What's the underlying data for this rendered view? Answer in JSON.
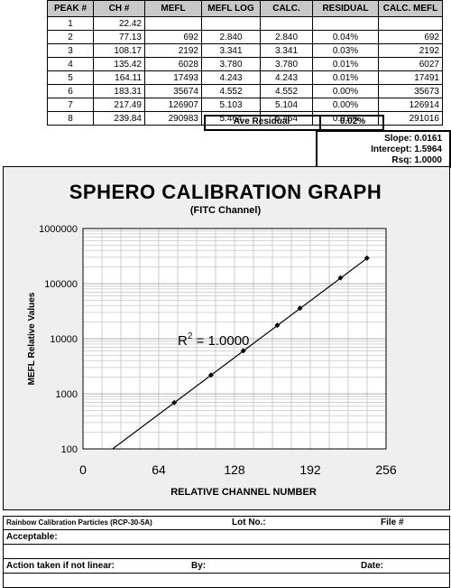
{
  "table": {
    "headers": [
      "PEAK #",
      "CH #",
      "MEFL",
      "MEFL LOG",
      "CALC.",
      "RESIDUAL",
      "CALC. MEFL"
    ],
    "rows": [
      [
        "1",
        "22.42",
        "",
        "",
        "",
        "",
        ""
      ],
      [
        "2",
        "77.13",
        "692",
        "2.840",
        "2.840",
        "0.04%",
        "692"
      ],
      [
        "3",
        "108.17",
        "2192",
        "3.341",
        "3.341",
        "0.03%",
        "2192"
      ],
      [
        "4",
        "135.42",
        "6028",
        "3.780",
        "3.780",
        "0.01%",
        "6027"
      ],
      [
        "5",
        "164.11",
        "17493",
        "4.243",
        "4.243",
        "0.01%",
        "17491"
      ],
      [
        "6",
        "183.31",
        "35674",
        "4.552",
        "4.552",
        "0.00%",
        "35673"
      ],
      [
        "7",
        "217.49",
        "126907",
        "5.103",
        "5.104",
        "0.00%",
        "126914"
      ],
      [
        "8",
        "239.84",
        "290983",
        "5.464",
        "5.464",
        "0.01%",
        "291016"
      ]
    ],
    "ave_residual_label": "Ave Residual",
    "ave_residual_value": "0.02%"
  },
  "stats": {
    "slope": "Slope: 0.0161",
    "intercept": "Intercept: 1.5964",
    "rsq": "Rsq: 1.0000"
  },
  "chart_data": {
    "type": "scatter",
    "title": "SPHERO CALIBRATION GRAPH",
    "subtitle": "(FITC Channel)",
    "xlabel": "RELATIVE CHANNEL NUMBER",
    "ylabel": "MEFL Relative Values",
    "xlim": [
      0,
      256
    ],
    "ylim": [
      100,
      1000000
    ],
    "yscale": "log",
    "x_ticks": [
      "0",
      "64",
      "128",
      "192",
      "256"
    ],
    "y_ticks": [
      "100",
      "1000",
      "10000",
      "100000",
      "1000000"
    ],
    "grid": true,
    "annotation": "R",
    "annotation_sup": "2",
    "annotation_rest": " = 1.0000",
    "points": {
      "x": [
        77.13,
        108.17,
        135.42,
        164.11,
        183.31,
        217.49,
        239.84
      ],
      "y": [
        692,
        2192,
        6028,
        17493,
        35674,
        126907,
        290983
      ]
    },
    "fit": {
      "slope": 0.0161,
      "intercept": 1.5964
    }
  },
  "form": {
    "particles": "Rainbow Calibration Particles (RCP-30-5A)",
    "lot": "Lot No.:",
    "file": "File #",
    "acceptable": "Acceptable:",
    "action": "Action taken if not linear:",
    "by": "By:",
    "date": "Date:"
  }
}
